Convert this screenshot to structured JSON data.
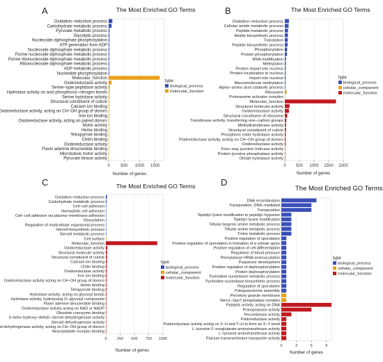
{
  "chart_data": [
    {
      "type": "bar",
      "orientation": "horizontal",
      "panel_letter": "A",
      "title": "The Most Enriched GO Terms",
      "xlabel": "Number of genes",
      "ylabel": "",
      "xlim": [
        0,
        1800
      ],
      "xticks": [
        0,
        500,
        1000,
        1500
      ],
      "legend_title": "type",
      "legend_placement": "right",
      "series": [
        {
          "name": "biological_process",
          "color": "#3a4fb8"
        },
        {
          "name": "molecular_function",
          "color": "#e8a21e"
        }
      ],
      "categories": [
        "Oxidation−reduction process",
        "Carbohydrate metabolic process",
        "Pyruvate metabolic process",
        "Glycolytic process",
        "Nucleoside diphosphate phosphorylation",
        "ATP generation from ADP",
        "Nucleoside diphosphate metabolic process",
        "Purine nucleoside diphosphate metabolic process",
        "Purine ribonucleoside diphosphate metabolic process",
        "Ribonucleoside diphosphate metabolic process",
        "ADP metabolic process",
        "Nucleotide phosphorylation",
        "Molecular_function",
        "Oxidoreductase activity",
        "Serine−type peptidase activity",
        "Hydrolase activity on acid phosphorus−nitrogen bonds",
        "Serine hydrolase activity",
        "Structural constituent of cuticle",
        "Calcium ion binding",
        "Oxidoreductase activity, acting on CH−OH group of donors",
        "Iron ion binding",
        "Oxidoreductase activity, acting on paired donors",
        "Motor activity",
        "Heme binding",
        "Tetrapyrrole binding",
        "Chitin binding",
        "Oxidoreductase activity",
        "Flavin adenine dinucleotide binding",
        "Microtubule motor activity",
        "Pyruvate kinase activity"
      ],
      "values": [
        120,
        95,
        30,
        28,
        25,
        24,
        24,
        23,
        23,
        23,
        22,
        22,
        1650,
        95,
        40,
        30,
        28,
        22,
        20,
        19,
        18,
        17,
        16,
        15,
        15,
        14,
        13,
        12,
        12,
        10
      ],
      "series_index": [
        0,
        0,
        0,
        0,
        0,
        0,
        0,
        0,
        0,
        0,
        0,
        0,
        1,
        1,
        1,
        1,
        1,
        1,
        1,
        1,
        1,
        1,
        1,
        1,
        1,
        1,
        1,
        1,
        1,
        1
      ]
    },
    {
      "type": "bar",
      "orientation": "horizontal",
      "panel_letter": "B",
      "title": "The Most Enriched GO Terms",
      "xlabel": "Number of genes",
      "ylabel": "",
      "xlim": [
        0,
        2000
      ],
      "xticks": [
        0,
        500,
        1000,
        1500,
        2000
      ],
      "legend_title": "type",
      "legend_placement": "right",
      "series": [
        {
          "name": "biological_process",
          "color": "#3a4fb8"
        },
        {
          "name": "cellular_component",
          "color": "#e8a21e"
        },
        {
          "name": "molecular_function",
          "color": "#c0191f"
        }
      ],
      "categories": [
        "Oxidation−reduction process",
        "Cellular amide metabolic process",
        "Peptide metabolic process",
        "Amide biosynthetic process",
        "Translation",
        "Peptide biosynthetic process",
        "Phosphorylation",
        "Protein phosphorylation",
        "RNA modification",
        "Methylation",
        "Protein import into nucleus",
        "Protein localization to nucleus",
        "Import into nucleus",
        "Macromolecule methylation",
        "Alpha−amino acid catabolic process",
        "Ribosome",
        "Proteasome activator complex",
        "Molecular_function",
        "Structural molecule activity",
        "Oxidoreductase activity",
        "Structural constituent of ribosome",
        "Transferase activity, transferring one−carbon groups",
        "Methyltransferase activity",
        "Structural constituent of cuticle",
        "Phosphoric ester hydrolase activity",
        "Pxidoreductase activity, acting on CH−OH group of donors",
        "Oxidoreductase activity",
        "Four−way junction helicase activity",
        "Protein tyrosine phosphatase activity",
        "Oleate hydratase activity"
      ],
      "values": [
        140,
        130,
        110,
        105,
        100,
        95,
        80,
        75,
        40,
        35,
        30,
        30,
        28,
        25,
        20,
        60,
        15,
        1750,
        160,
        140,
        80,
        50,
        40,
        40,
        35,
        30,
        28,
        15,
        12,
        10
      ],
      "series_index": [
        0,
        0,
        0,
        0,
        0,
        0,
        0,
        0,
        0,
        0,
        0,
        0,
        0,
        0,
        0,
        1,
        1,
        2,
        2,
        2,
        2,
        2,
        2,
        2,
        2,
        2,
        2,
        2,
        2,
        2
      ]
    },
    {
      "type": "bar",
      "orientation": "horizontal",
      "panel_letter": "C",
      "title": "The Most Enriched GO Terms",
      "xlabel": "Number of genes",
      "ylabel": "",
      "xlim": [
        0,
        1000
      ],
      "xticks": [
        0,
        250,
        500,
        750,
        1000
      ],
      "legend_title": "type",
      "legend_placement": "right",
      "series": [
        {
          "name": "biological_process",
          "color": "#3a4fb8"
        },
        {
          "name": "cellular_component",
          "color": "#e8a21e"
        },
        {
          "name": "molecular_function",
          "color": "#c0191f"
        }
      ],
      "categories": [
        "Oxidation−reduction process",
        "Carbohydrate metabolic process",
        "Cell−cell adhesion",
        "Homophilic cell adhesion",
        "Cell−cell adhesion via plasma−membrane adhesion",
        "Glyoxylation",
        "Regulation of multicellular organismal process",
        "Steroid biosynthetic process",
        "Steroid metabolic process",
        "Cell surface",
        "Molecular_function",
        "Oxidoreductase activity",
        "Structural molecule activity",
        "Structural constituent of cuticle",
        "Calcium ion binding",
        "Chitin binding",
        "Oxidoreductase activity",
        "Iron ion binding",
        "Oxidoreductase activity acting on CH−OH group of donors",
        "Heme binding",
        "Tetrapyrrole binding",
        "Hydrolase activity, acting on glycosyl bonds",
        "Hydrolase activity, hydrolyzing O−glycosyl compounds",
        "Flavin adenine dinucleotide binding",
        "Oxidoreductase activity acting on NAD or NADP",
        "Obsolete coenzyme binding",
        "3−beta−hydroxy−delta5−steroid dehydrogenase activity",
        "Steroid dehydrogenase activity",
        "Steroid dehydrogenase activity, acting on CH−OH group of donors",
        "Neuropeptide receptor binding"
      ],
      "values": [
        20,
        12,
        8,
        8,
        7,
        6,
        6,
        5,
        5,
        4,
        900,
        25,
        22,
        20,
        18,
        16,
        15,
        14,
        13,
        12,
        12,
        11,
        10,
        9,
        8,
        8,
        7,
        7,
        6,
        5
      ],
      "series_index": [
        0,
        0,
        0,
        0,
        0,
        0,
        0,
        0,
        0,
        1,
        2,
        2,
        2,
        2,
        2,
        2,
        2,
        2,
        2,
        2,
        2,
        2,
        2,
        2,
        2,
        2,
        2,
        2,
        2,
        2
      ]
    },
    {
      "type": "bar",
      "orientation": "horizontal",
      "panel_letter": "D",
      "title": "The Most Enriched GO Terms",
      "xlabel": "Number of genes",
      "ylabel": "",
      "xlim": [
        0,
        10
      ],
      "xticks": [
        0,
        3,
        6,
        9
      ],
      "legend_title": "type",
      "legend_placement": "right",
      "series": [
        {
          "name": "biological_process",
          "color": "#3a4fb8"
        },
        {
          "name": "cellular_component",
          "color": "#e8a21e"
        },
        {
          "name": "molecular_function",
          "color": "#c0191f"
        }
      ],
      "categories": [
        "DNA recombination",
        "Transposition, DNA−mediated",
        "Transposition",
        "Teptidyl−lysine modification to peptidyl−hypusine",
        "Teptidyl−lysine modification",
        "Tellular biogenic amine metabolic process",
        "Tellular amine metabolic process",
        "Tmine metabolic process",
        "Positive regulation of sporulation",
        "Positive regulation of sporulation in formation of a cellular spore",
        "Positive regulation of cell differentiation",
        "Regulation of blood pressure",
        "Phenylalanyl−tRNA aminoacylation",
        "Puspensor development",
        "Positive regulation of dephosphorylation",
        "Protein dephosphorylation",
        "Pyrimidine nucleobase metabolic process",
        "Pyrimidine nucleobase biosynthetic process",
        "Regulation of sporulation",
        "Putoguanosome assembly",
        "Pecretory granule membrane",
        "Nem1−Spo7 phosphatase complex",
        "Patalytic activity, acting on DNA",
        "Pranspoasase activity",
        "Pecombinase activity",
        "Pxidoreductase activity",
        "Pxidoreductase activity acting on X−H and Y−H to form an X−Y bond",
        "L−tyrosine:2−oxoglutarate aminotransferase activity",
        "L−tyrosine aminotransferase activity",
        "Palcium transmembrane transporter activity"
      ],
      "values": [
        7,
        6,
        6,
        2,
        2,
        2,
        2,
        2,
        1,
        1,
        1,
        1,
        1,
        1,
        1,
        1,
        1,
        1,
        1,
        1,
        1,
        1,
        10,
        6,
        2,
        1,
        1,
        1,
        1,
        1
      ],
      "series_index": [
        0,
        0,
        0,
        0,
        0,
        0,
        0,
        0,
        0,
        0,
        0,
        0,
        0,
        0,
        0,
        0,
        0,
        0,
        0,
        0,
        1,
        1,
        2,
        2,
        2,
        2,
        2,
        2,
        2,
        2
      ]
    }
  ]
}
